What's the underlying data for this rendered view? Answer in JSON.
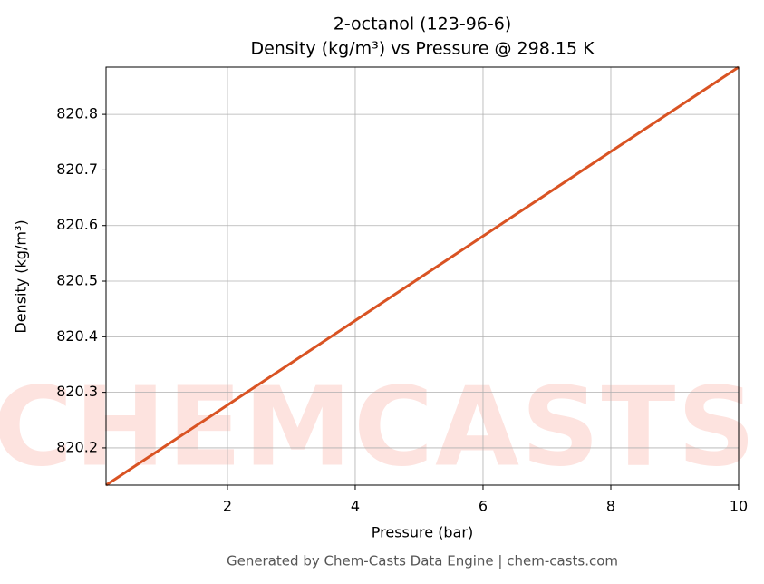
{
  "chart_data": {
    "type": "line",
    "title": "2-octanol (123-96-6)",
    "subtitle": "Density (kg/m³) vs Pressure @ 298.15 K",
    "x_label": "Pressure (bar)",
    "y_label": "Density (kg/m³)",
    "footer": "Generated by Chem-Casts Data Engine | chem-casts.com",
    "watermark": "CHEMCASTS",
    "x": [
      0.1,
      2,
      4,
      6,
      8,
      10
    ],
    "series": [
      {
        "name": "Density",
        "color": "#d95323",
        "values": [
          820.133,
          820.277,
          820.429,
          820.581,
          820.733,
          820.885
        ]
      }
    ],
    "xlim": [
      0.1,
      10
    ],
    "xticks": [
      2,
      4,
      6,
      8,
      10
    ],
    "ylim": [
      820.133,
      820.885
    ],
    "yticks": [
      820.2,
      820.3,
      820.4,
      820.5,
      820.6,
      820.7,
      820.8
    ],
    "grid": true
  }
}
